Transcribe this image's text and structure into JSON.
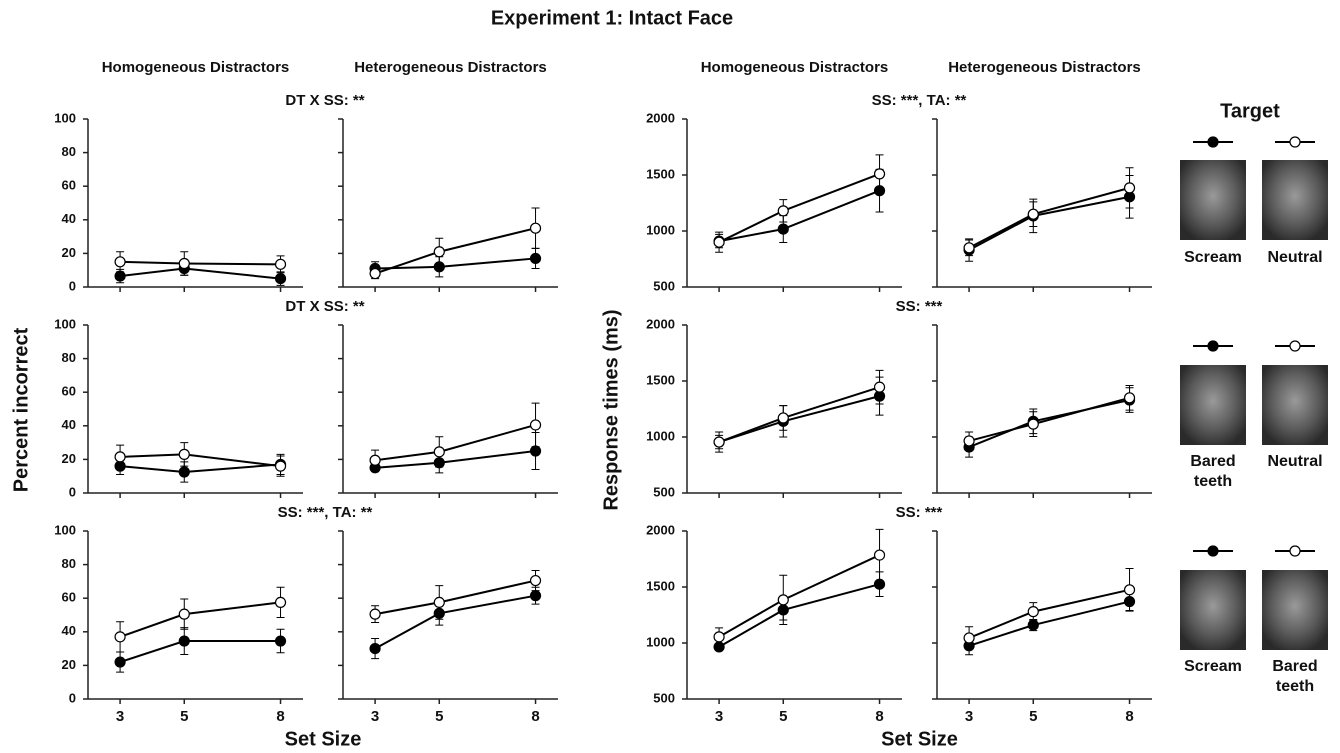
{
  "title": "Experiment 1: Intact Face",
  "legend": {
    "title": "Target",
    "rows": [
      [
        {
          "label": "Scream",
          "marker": "filled"
        },
        {
          "label": "Neutral",
          "marker": "open"
        }
      ],
      [
        {
          "label": "Bared teeth",
          "marker": "filled"
        },
        {
          "label": "Neutral",
          "marker": "open"
        }
      ],
      [
        {
          "label": "Scream",
          "marker": "filled"
        },
        {
          "label": "Bared teeth",
          "marker": "open"
        }
      ]
    ]
  },
  "chart_data": [
    {
      "type": "line",
      "ylabel": "Percent incorrect",
      "xlabel": "Set Size",
      "columns": [
        "Homogeneous Distractors",
        "Heterogeneous Distractors"
      ],
      "xlim": [
        2,
        8.7
      ],
      "xticks": [
        3,
        5,
        8
      ],
      "ylim": [
        0,
        100
      ],
      "yticks": [
        0,
        20,
        40,
        60,
        80,
        100
      ],
      "rows": [
        {
          "annotation": "DT X SS: **",
          "panels": [
            {
              "series": [
                {
                  "marker": "filled",
                  "color": "#000000",
                  "x": [
                    3,
                    5,
                    8
                  ],
                  "values": [
                    6.5,
                    11,
                    5
                  ],
                  "errors": [
                    4,
                    4,
                    4
                  ]
                },
                {
                  "marker": "open",
                  "color": "#000000",
                  "x": [
                    3,
                    5,
                    8
                  ],
                  "values": [
                    15,
                    14,
                    13.5
                  ],
                  "errors": [
                    6,
                    7,
                    5
                  ]
                }
              ]
            },
            {
              "series": [
                {
                  "marker": "filled",
                  "color": "#000000",
                  "x": [
                    3,
                    5,
                    8
                  ],
                  "values": [
                    11,
                    12,
                    17
                  ],
                  "errors": [
                    4,
                    6,
                    6
                  ]
                },
                {
                  "marker": "open",
                  "color": "#000000",
                  "x": [
                    3,
                    5,
                    8
                  ],
                  "values": [
                    8,
                    21,
                    35
                  ],
                  "errors": [
                    3,
                    8,
                    12
                  ]
                }
              ]
            }
          ]
        },
        {
          "annotation": "DT X SS: **",
          "panels": [
            {
              "series": [
                {
                  "marker": "filled",
                  "color": "#000000",
                  "x": [
                    3,
                    5,
                    8
                  ],
                  "values": [
                    16,
                    12.5,
                    17
                  ],
                  "errors": [
                    5,
                    6,
                    6
                  ]
                },
                {
                  "marker": "open",
                  "color": "#000000",
                  "x": [
                    3,
                    5,
                    8
                  ],
                  "values": [
                    21.5,
                    23,
                    16
                  ],
                  "errors": [
                    7,
                    7,
                    6
                  ]
                }
              ]
            },
            {
              "series": [
                {
                  "marker": "filled",
                  "color": "#000000",
                  "x": [
                    3,
                    5,
                    8
                  ],
                  "values": [
                    15,
                    18,
                    25
                  ],
                  "errors": [
                    2,
                    6,
                    11
                  ]
                },
                {
                  "marker": "open",
                  "color": "#000000",
                  "x": [
                    3,
                    5,
                    8
                  ],
                  "values": [
                    19.5,
                    24.5,
                    40.5
                  ],
                  "errors": [
                    6,
                    9,
                    13
                  ]
                }
              ]
            }
          ]
        },
        {
          "annotation": "SS: ***, TA: **",
          "panels": [
            {
              "series": [
                {
                  "marker": "filled",
                  "color": "#000000",
                  "x": [
                    3,
                    5,
                    8
                  ],
                  "values": [
                    22,
                    34.5,
                    34.5
                  ],
                  "errors": [
                    6,
                    8,
                    7
                  ]
                },
                {
                  "marker": "open",
                  "color": "#000000",
                  "x": [
                    3,
                    5,
                    8
                  ],
                  "values": [
                    37,
                    50.5,
                    57.5
                  ],
                  "errors": [
                    9,
                    9,
                    9
                  ]
                }
              ]
            },
            {
              "series": [
                {
                  "marker": "filled",
                  "color": "#000000",
                  "x": [
                    3,
                    5,
                    8
                  ],
                  "values": [
                    30,
                    51,
                    61.5
                  ],
                  "errors": [
                    6,
                    7,
                    5
                  ]
                },
                {
                  "marker": "open",
                  "color": "#000000",
                  "x": [
                    3,
                    5,
                    8
                  ],
                  "values": [
                    50.5,
                    57.5,
                    70.5
                  ],
                  "errors": [
                    5,
                    10,
                    6
                  ]
                }
              ]
            }
          ]
        }
      ]
    },
    {
      "type": "line",
      "ylabel": "Response times (ms)",
      "xlabel": "Set Size",
      "columns": [
        "Homogeneous Distractors",
        "Heterogeneous Distractors"
      ],
      "xlim": [
        2,
        8.7
      ],
      "xticks": [
        3,
        5,
        8
      ],
      "ylim": [
        500,
        2000
      ],
      "yticks": [
        500,
        1000,
        1500,
        2000
      ],
      "rows": [
        {
          "annotation": "SS: ***, TA: **",
          "panels": [
            {
              "series": [
                {
                  "marker": "filled",
                  "color": "#000000",
                  "x": [
                    3,
                    5,
                    8
                  ],
                  "values": [
                    910,
                    1017,
                    1360
                  ],
                  "errors": [
                    60,
                    120,
                    190
                  ]
                },
                {
                  "marker": "open",
                  "color": "#000000",
                  "x": [
                    3,
                    5,
                    8
                  ],
                  "values": [
                    900,
                    1180,
                    1510
                  ],
                  "errors": [
                    90,
                    100,
                    170
                  ]
                }
              ]
            },
            {
              "series": [
                {
                  "marker": "filled",
                  "color": "#000000",
                  "x": [
                    3,
                    5,
                    8
                  ],
                  "values": [
                    830,
                    1135,
                    1305
                  ],
                  "errors": [
                    100,
                    150,
                    190
                  ]
                },
                {
                  "marker": "open",
                  "color": "#000000",
                  "x": [
                    3,
                    5,
                    8
                  ],
                  "values": [
                    850,
                    1150,
                    1385
                  ],
                  "errors": [
                    70,
                    110,
                    180
                  ]
                }
              ]
            }
          ]
        },
        {
          "annotation": "SS: ***",
          "panels": [
            {
              "series": [
                {
                  "marker": "filled",
                  "color": "#000000",
                  "x": [
                    3,
                    5,
                    8
                  ],
                  "values": [
                    955,
                    1140,
                    1365
                  ],
                  "errors": [
                    90,
                    140,
                    170
                  ]
                },
                {
                  "marker": "open",
                  "color": "#000000",
                  "x": [
                    3,
                    5,
                    8
                  ],
                  "values": [
                    955,
                    1170,
                    1445
                  ],
                  "errors": [
                    60,
                    110,
                    150
                  ]
                }
              ]
            },
            {
              "series": [
                {
                  "marker": "filled",
                  "color": "#000000",
                  "x": [
                    3,
                    5,
                    8
                  ],
                  "values": [
                    910,
                    1140,
                    1330
                  ],
                  "errors": [
                    90,
                    110,
                    110
                  ]
                },
                {
                  "marker": "open",
                  "color": "#000000",
                  "x": [
                    3,
                    5,
                    8
                  ],
                  "values": [
                    965,
                    1115,
                    1350
                  ],
                  "errors": [
                    80,
                    110,
                    110
                  ]
                }
              ]
            }
          ]
        },
        {
          "annotation": "SS: ***",
          "panels": [
            {
              "series": [
                {
                  "marker": "filled",
                  "color": "#000000",
                  "x": [
                    3,
                    5,
                    8
                  ],
                  "values": [
                    965,
                    1295,
                    1525
                  ],
                  "errors": [
                    20,
                    90,
                    110
                  ]
                },
                {
                  "marker": "open",
                  "color": "#000000",
                  "x": [
                    3,
                    5,
                    8
                  ],
                  "values": [
                    1055,
                    1385,
                    1785
                  ],
                  "errors": [
                    80,
                    220,
                    230
                  ]
                }
              ]
            },
            {
              "series": [
                {
                  "marker": "filled",
                  "color": "#000000",
                  "x": [
                    3,
                    5,
                    8
                  ],
                  "values": [
                    975,
                    1160,
                    1370
                  ],
                  "errors": [
                    80,
                    50,
                    80
                  ]
                },
                {
                  "marker": "open",
                  "color": "#000000",
                  "x": [
                    3,
                    5,
                    8
                  ],
                  "values": [
                    1045,
                    1280,
                    1475
                  ],
                  "errors": [
                    100,
                    80,
                    190
                  ]
                }
              ]
            }
          ]
        }
      ]
    }
  ]
}
